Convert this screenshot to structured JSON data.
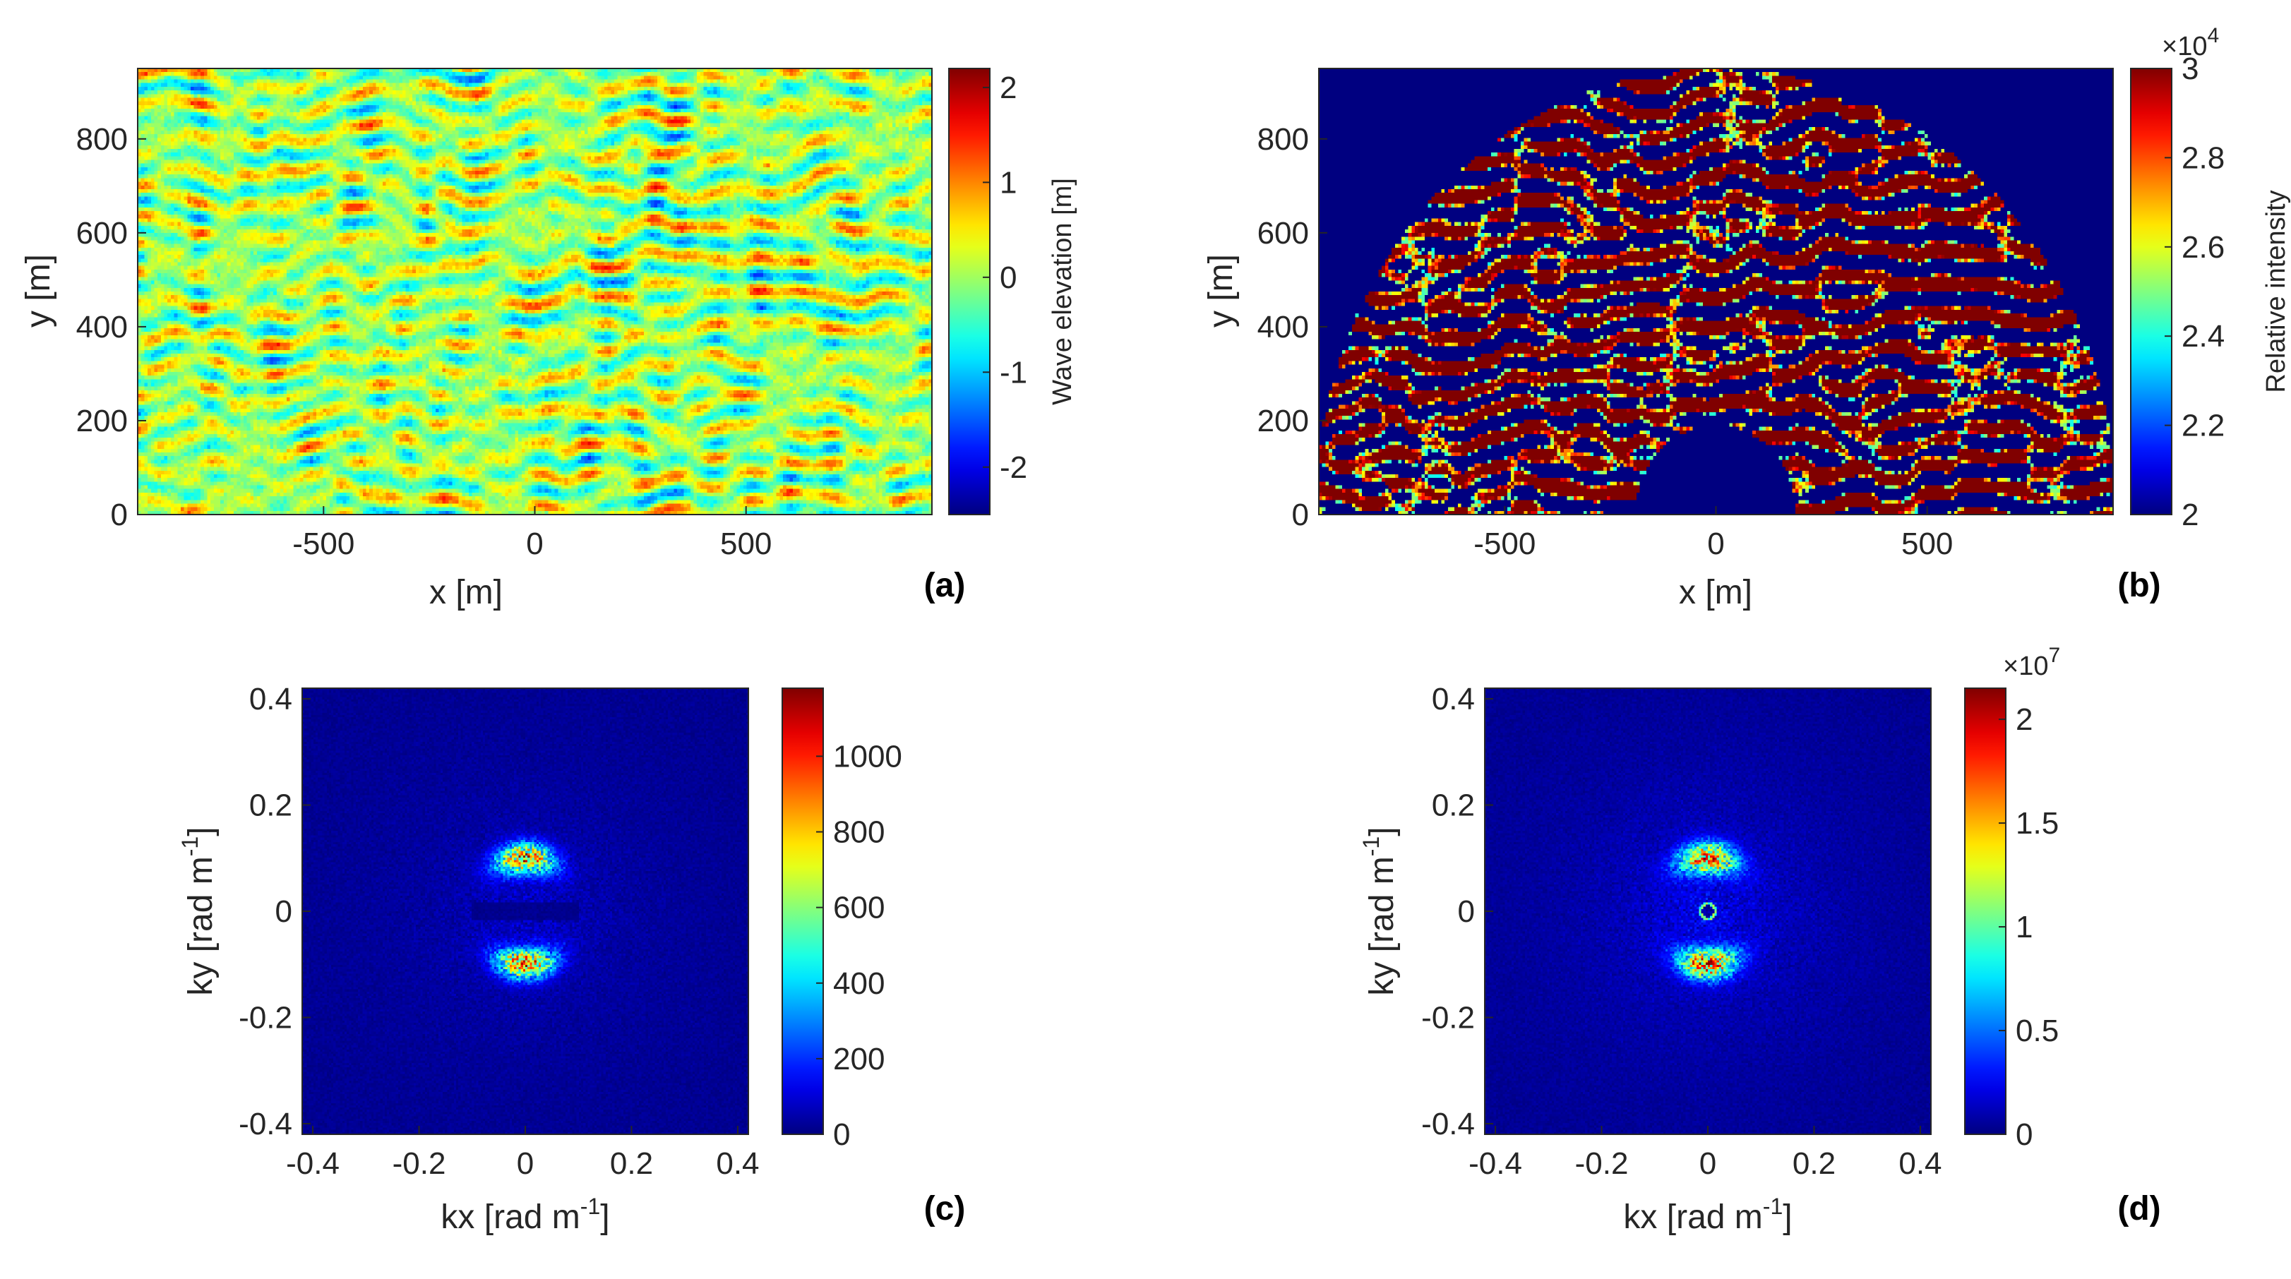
{
  "panels": [
    {
      "id": "a",
      "label": "(a)",
      "type": "heatmap",
      "xlabel": "x [m]",
      "ylabel": "y [m]",
      "xlim": [
        -940,
        940
      ],
      "ylim": [
        0,
        950
      ],
      "xticks": [
        "-500",
        "0",
        "500"
      ],
      "yticks": [
        "0",
        "200",
        "400",
        "600",
        "800"
      ],
      "colorbar": {
        "label": "Wave elevation [m]",
        "range": [
          -2.5,
          2.2
        ],
        "ticks": [
          "-2",
          "-1",
          "0",
          "1",
          "2"
        ],
        "exponent": ""
      }
    },
    {
      "id": "b",
      "label": "(b)",
      "type": "heatmap",
      "xlabel": "x [m]",
      "ylabel": "y [m]",
      "xlim": [
        -940,
        940
      ],
      "ylim": [
        0,
        950
      ],
      "xticks": [
        "-500",
        "0",
        "500"
      ],
      "yticks": [
        "0",
        "200",
        "400",
        "600",
        "800"
      ],
      "colorbar": {
        "label": "Relative intensity",
        "range": [
          2,
          3
        ],
        "ticks": [
          "2",
          "2.2",
          "2.4",
          "2.6",
          "2.8",
          "3"
        ],
        "exponent": "×10",
        "exponent_power": "4"
      }
    },
    {
      "id": "c",
      "label": "(c)",
      "type": "heatmap",
      "xlabel": "kx [rad m",
      "xlabel_sup": "-1",
      "xlabel_end": "]",
      "ylabel": "ky [rad m",
      "ylabel_sup": "-1",
      "ylabel_end": "]",
      "xlim": [
        -0.42,
        0.42
      ],
      "ylim": [
        -0.42,
        0.42
      ],
      "xticks": [
        "-0.4",
        "-0.2",
        "0",
        "0.2",
        "0.4"
      ],
      "yticks": [
        "-0.4",
        "-0.2",
        "0",
        "0.2",
        "0.4"
      ],
      "colorbar": {
        "label": "",
        "range": [
          0,
          1180
        ],
        "ticks": [
          "0",
          "200",
          "400",
          "600",
          "800",
          "1000"
        ],
        "exponent": ""
      }
    },
    {
      "id": "d",
      "label": "(d)",
      "type": "heatmap",
      "xlabel": "kx [rad m",
      "xlabel_sup": "-1",
      "xlabel_end": "]",
      "ylabel": "ky [rad m",
      "ylabel_sup": "-1",
      "ylabel_end": "]",
      "xlim": [
        -0.42,
        0.42
      ],
      "ylim": [
        -0.42,
        0.42
      ],
      "xticks": [
        "-0.4",
        "-0.2",
        "0",
        "0.2",
        "0.4"
      ],
      "yticks": [
        "-0.4",
        "-0.2",
        "0",
        "0.2",
        "0.4"
      ],
      "colorbar": {
        "label": "",
        "range": [
          0,
          2.15
        ],
        "ticks": [
          "0",
          "0.5",
          "1",
          "1.5",
          "2"
        ],
        "exponent": "×10",
        "exponent_power": "7"
      }
    }
  ],
  "chart_data": [
    {
      "type": "heatmap",
      "panel": "(a)",
      "description_values": "random sea surface elevation field",
      "xlabel": "x [m]",
      "ylabel": "y [m]",
      "xlim": [
        -940,
        940
      ],
      "ylim": [
        0,
        950
      ],
      "colorbar": {
        "label": "Wave elevation [m]",
        "min": -2.5,
        "max": 2.2,
        "ticks": [
          -2,
          -1,
          0,
          1,
          2
        ]
      },
      "colormap": "jet"
    },
    {
      "type": "heatmap",
      "panel": "(b)",
      "xlabel": "x [m]",
      "ylabel": "y [m]",
      "xlim": [
        -940,
        940
      ],
      "ylim": [
        0,
        950
      ],
      "colorbar": {
        "label": "Relative intensity",
        "min": 20000,
        "max": 30000,
        "ticks": [
          2,
          2.2,
          2.4,
          2.6,
          2.8,
          3
        ],
        "multiplier": "×10^4"
      },
      "colormap": "jet",
      "mask": {
        "outer_radius_m": 950,
        "inner_radius_m": 190
      }
    },
    {
      "type": "heatmap",
      "panel": "(c)",
      "xlabel": "kx [rad m^-1]",
      "ylabel": "ky [rad m^-1]",
      "xlim": [
        -0.42,
        0.42
      ],
      "ylim": [
        -0.42,
        0.42
      ],
      "colorbar": {
        "min": 0,
        "max": 1180,
        "ticks": [
          0,
          200,
          400,
          600,
          800,
          1000
        ]
      },
      "colormap": "jet",
      "peaks": [
        {
          "kx": 0,
          "ky": 0.1
        },
        {
          "kx": 0,
          "ky": -0.1
        }
      ]
    },
    {
      "type": "heatmap",
      "panel": "(d)",
      "xlabel": "kx [rad m^-1]",
      "ylabel": "ky [rad m^-1]",
      "xlim": [
        -0.42,
        0.42
      ],
      "ylim": [
        -0.42,
        0.42
      ],
      "colorbar": {
        "min": 0,
        "max": 21500000,
        "ticks": [
          0,
          0.5,
          1,
          1.5,
          2
        ],
        "multiplier": "×10^7"
      },
      "colormap": "jet",
      "peaks": [
        {
          "kx": 0,
          "ky": 0.1
        },
        {
          "kx": 0,
          "ky": -0.1
        }
      ],
      "center_ring_radius": 0.012
    }
  ]
}
